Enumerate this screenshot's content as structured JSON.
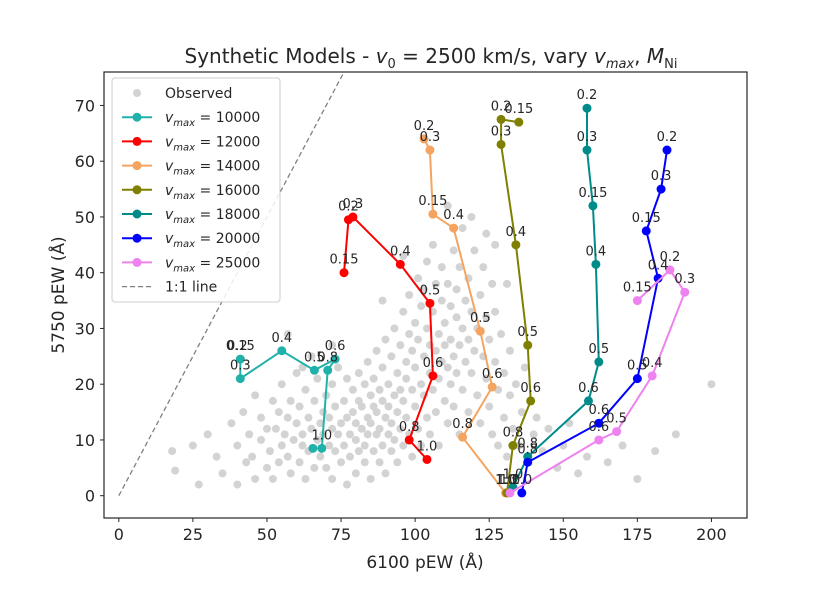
{
  "chart_data": {
    "type": "scatter",
    "title": "Synthetic Models - v₀ = 2500 km/s, vary vₘₐₓ, Mₙᵢ",
    "title_parts": {
      "prefix": "Synthetic Models - ",
      "v": "v",
      "v0_sub": "0",
      "eq": " = 2500 km/s, vary ",
      "vmax_sub": "max",
      "sep": ", ",
      "M": "M",
      "Ni": "Ni"
    },
    "xlabel": "6100 pEW (Å)",
    "ylabel": "5750 pEW (Å)",
    "xlim": [
      -5,
      212
    ],
    "ylim": [
      -4,
      76
    ],
    "xticks": [
      0,
      25,
      50,
      75,
      100,
      125,
      150,
      175,
      200
    ],
    "yticks": [
      0,
      10,
      20,
      30,
      40,
      50,
      60,
      70
    ],
    "legend_position": "top-left",
    "observed": {
      "name": "Observed",
      "color": "#d3d3d3",
      "points": [
        [
          18,
          8
        ],
        [
          19,
          4.5
        ],
        [
          25,
          9
        ],
        [
          27,
          2
        ],
        [
          30,
          11
        ],
        [
          33,
          7
        ],
        [
          35,
          4
        ],
        [
          38,
          13
        ],
        [
          40,
          2
        ],
        [
          40,
          9
        ],
        [
          42,
          15
        ],
        [
          43,
          6
        ],
        [
          44,
          11
        ],
        [
          45,
          7
        ],
        [
          46,
          18
        ],
        [
          46,
          3
        ],
        [
          48,
          10
        ],
        [
          48,
          14
        ],
        [
          50,
          5
        ],
        [
          50,
          12
        ],
        [
          51,
          8
        ],
        [
          52,
          17
        ],
        [
          52,
          3
        ],
        [
          53,
          12
        ],
        [
          54,
          15
        ],
        [
          54,
          6
        ],
        [
          55,
          9
        ],
        [
          55,
          20
        ],
        [
          56,
          11
        ],
        [
          57,
          14
        ],
        [
          57,
          7
        ],
        [
          58,
          4
        ],
        [
          58,
          17
        ],
        [
          59,
          10
        ],
        [
          60,
          22
        ],
        [
          60,
          13
        ],
        [
          61,
          6
        ],
        [
          61,
          16
        ],
        [
          62,
          9
        ],
        [
          62,
          11
        ],
        [
          63,
          19
        ],
        [
          63,
          3
        ],
        [
          64,
          14
        ],
        [
          64,
          8
        ],
        [
          65,
          25
        ],
        [
          65,
          12
        ],
        [
          66,
          5
        ],
        [
          66,
          17
        ],
        [
          67,
          10
        ],
        [
          67,
          21
        ],
        [
          68,
          13
        ],
        [
          68,
          7
        ],
        [
          69,
          15
        ],
        [
          69,
          11
        ],
        [
          70,
          18
        ],
        [
          70,
          5
        ],
        [
          71,
          9
        ],
        [
          71,
          14
        ],
        [
          72,
          12
        ],
        [
          72,
          20
        ],
        [
          72,
          3
        ],
        [
          73,
          16
        ],
        [
          73,
          8
        ],
        [
          74,
          11
        ],
        [
          74,
          23
        ],
        [
          75,
          13
        ],
        [
          75,
          6
        ],
        [
          76,
          17
        ],
        [
          76,
          9
        ],
        [
          77,
          14
        ],
        [
          77,
          2
        ],
        [
          77,
          21
        ],
        [
          78,
          11
        ],
        [
          78,
          7
        ],
        [
          79,
          15
        ],
        [
          79,
          19
        ],
        [
          80,
          10
        ],
        [
          80,
          13
        ],
        [
          80,
          4
        ],
        [
          81,
          17
        ],
        [
          81,
          22
        ],
        [
          81,
          8
        ],
        [
          82,
          12
        ],
        [
          82,
          16
        ],
        [
          83,
          20
        ],
        [
          83,
          9
        ],
        [
          83,
          6
        ],
        [
          84,
          14
        ],
        [
          84,
          24
        ],
        [
          84,
          11
        ],
        [
          85,
          18
        ],
        [
          85,
          3
        ],
        [
          85,
          13
        ],
        [
          86,
          21
        ],
        [
          86,
          8
        ],
        [
          86,
          16
        ],
        [
          87,
          11
        ],
        [
          87,
          26
        ],
        [
          87,
          15
        ],
        [
          88,
          19
        ],
        [
          88,
          6
        ],
        [
          88,
          12
        ],
        [
          89,
          23
        ],
        [
          89,
          9
        ],
        [
          89,
          17
        ],
        [
          90,
          14
        ],
        [
          90,
          28
        ],
        [
          90,
          4
        ],
        [
          91,
          20
        ],
        [
          91,
          11
        ],
        [
          91,
          16
        ],
        [
          92,
          25
        ],
        [
          92,
          8
        ],
        [
          92,
          13
        ],
        [
          93,
          18
        ],
        [
          93,
          30
        ],
        [
          93,
          10
        ],
        [
          94,
          22
        ],
        [
          94,
          15
        ],
        [
          94,
          6
        ],
        [
          95,
          27
        ],
        [
          95,
          12
        ],
        [
          95,
          19
        ],
        [
          96,
          33
        ],
        [
          96,
          9
        ],
        [
          96,
          17
        ],
        [
          97,
          24
        ],
        [
          97,
          14
        ],
        [
          97,
          21
        ],
        [
          98,
          29
        ],
        [
          98,
          11
        ],
        [
          98,
          36
        ],
        [
          99,
          19
        ],
        [
          99,
          26
        ],
        [
          99,
          7
        ],
        [
          100,
          23
        ],
        [
          100,
          31
        ],
        [
          100,
          16
        ],
        [
          101,
          39
        ],
        [
          101,
          12
        ],
        [
          101,
          28
        ],
        [
          102,
          20
        ],
        [
          102,
          34
        ],
        [
          102,
          9
        ],
        [
          103,
          25
        ],
        [
          103,
          37
        ],
        [
          103,
          18
        ],
        [
          104,
          14
        ],
        [
          104,
          42
        ],
        [
          104,
          30
        ],
        [
          105,
          22
        ],
        [
          105,
          27
        ],
        [
          105,
          11
        ],
        [
          106,
          33
        ],
        [
          106,
          19
        ],
        [
          106,
          45
        ],
        [
          107,
          26
        ],
        [
          107,
          15
        ],
        [
          107,
          38
        ],
        [
          108,
          29
        ],
        [
          108,
          21
        ],
        [
          108,
          9
        ],
        [
          109,
          35
        ],
        [
          109,
          24
        ],
        [
          109,
          41
        ],
        [
          110,
          17
        ],
        [
          110,
          31
        ],
        [
          110,
          27
        ],
        [
          111,
          23
        ],
        [
          111,
          38
        ],
        [
          111,
          13
        ],
        [
          112,
          34
        ],
        [
          112,
          28
        ],
        [
          112,
          20
        ],
        [
          113,
          44
        ],
        [
          113,
          25
        ],
        [
          113,
          16
        ],
        [
          114,
          32
        ],
        [
          114,
          37
        ],
        [
          114,
          22
        ],
        [
          115,
          27
        ],
        [
          115,
          41
        ],
        [
          115,
          11
        ],
        [
          116,
          30
        ],
        [
          116,
          19
        ],
        [
          116,
          48
        ],
        [
          117,
          35
        ],
        [
          117,
          24
        ],
        [
          118,
          28
        ],
        [
          118,
          39
        ],
        [
          118,
          15
        ],
        [
          119,
          22
        ],
        [
          119,
          33
        ],
        [
          120,
          26
        ],
        [
          120,
          44
        ],
        [
          121,
          30
        ],
        [
          121,
          18
        ],
        [
          122,
          36
        ],
        [
          122,
          13
        ],
        [
          123,
          25
        ],
        [
          123,
          41
        ],
        [
          124,
          21
        ],
        [
          124,
          32
        ],
        [
          125,
          16
        ],
        [
          125,
          28
        ],
        [
          126,
          38
        ],
        [
          126,
          11
        ],
        [
          127,
          24
        ],
        [
          127,
          33
        ],
        [
          128,
          19
        ],
        [
          128,
          9
        ],
        [
          129,
          29
        ],
        [
          130,
          14
        ],
        [
          130,
          22
        ],
        [
          131,
          7
        ],
        [
          132,
          18
        ],
        [
          132,
          26
        ],
        [
          133,
          12
        ],
        [
          134,
          20
        ],
        [
          135,
          9
        ],
        [
          136,
          15
        ],
        [
          137,
          23
        ],
        [
          138,
          6
        ],
        [
          139,
          17
        ],
        [
          140,
          11
        ],
        [
          141,
          14
        ],
        [
          143,
          8
        ],
        [
          145,
          12
        ],
        [
          148,
          5
        ],
        [
          150,
          9
        ],
        [
          152,
          13
        ],
        [
          155,
          4
        ],
        [
          158,
          7
        ],
        [
          162,
          10
        ],
        [
          165,
          6
        ],
        [
          170,
          9
        ],
        [
          175,
          3
        ],
        [
          181,
          8
        ],
        [
          188,
          11
        ],
        [
          200,
          20
        ],
        [
          127,
          45
        ],
        [
          131,
          38
        ],
        [
          124,
          47
        ],
        [
          119,
          50
        ],
        [
          111,
          52
        ],
        [
          96,
          43
        ],
        [
          89,
          35
        ],
        [
          72,
          27
        ],
        [
          62,
          23
        ],
        [
          57,
          29
        ]
      ]
    },
    "series": [
      {
        "name": "v_max = 10000",
        "legend_num": "10000",
        "color": "#20b2aa",
        "points": [
          [
            68.5,
            8.5
          ],
          [
            70.5,
            22.5
          ],
          [
            73,
            24.5
          ],
          [
            66,
            22.5
          ],
          [
            55,
            26
          ],
          [
            41,
            21
          ],
          [
            41,
            24.5
          ]
        ],
        "labels": [
          "1.0",
          "0.8",
          "0.6",
          "0.5",
          "0.4",
          "0.3",
          "0.15"
        ],
        "extra_labels": [
          {
            "text": "0.2",
            "x": 40,
            "y": 24.5
          }
        ],
        "endpoint_extra": [
          [
            65.5,
            8.5
          ]
        ]
      },
      {
        "name": "v_max = 12000",
        "legend_num": "12000",
        "color": "#ff0000",
        "points": [
          [
            104,
            6.5
          ],
          [
            98,
            10
          ],
          [
            106,
            21.5
          ],
          [
            105,
            34.5
          ],
          [
            95,
            41.5
          ],
          [
            79,
            50
          ],
          [
            77.5,
            49.5
          ],
          [
            76,
            40
          ]
        ],
        "labels": [
          "1.0",
          "0.8",
          "0.6",
          "0.5",
          "0.4",
          "0.3",
          "0.2",
          "0.15"
        ]
      },
      {
        "name": "v_max = 14000",
        "legend_num": "14000",
        "color": "#f4a460",
        "points": [
          [
            130.5,
            0.5
          ],
          [
            116,
            10.5
          ],
          [
            126,
            19.5
          ],
          [
            122,
            29.5
          ],
          [
            113,
            48
          ],
          [
            106,
            50.5
          ],
          [
            105,
            62
          ],
          [
            103,
            64
          ]
        ],
        "labels": [
          "1.0",
          "0.8",
          "0.6",
          "0.5",
          "0.4",
          "0.15",
          "0.3",
          "0.2"
        ]
      },
      {
        "name": "v_max = 16000",
        "legend_num": "16000",
        "color": "#808000",
        "points": [
          [
            131,
            0.5
          ],
          [
            133,
            9
          ],
          [
            139,
            17
          ],
          [
            138,
            27
          ],
          [
            134,
            45
          ],
          [
            129,
            63
          ],
          [
            129,
            67.5
          ],
          [
            135,
            67
          ]
        ],
        "labels": [
          "1.0",
          "0.8",
          "0.6",
          "0.5",
          "0.4",
          "0.3",
          "0.2",
          "0.15"
        ]
      },
      {
        "name": "v_max = 18000",
        "legend_num": "18000",
        "color": "#008b8b",
        "points": [
          [
            133,
            1.5
          ],
          [
            138,
            7
          ],
          [
            158.5,
            17
          ],
          [
            162,
            24
          ],
          [
            161,
            41.5
          ],
          [
            160,
            52
          ],
          [
            158,
            62
          ],
          [
            158,
            69.5
          ]
        ],
        "labels": [
          "1.0",
          "0.8",
          "0.6",
          "0.5",
          "0.4",
          "0.15",
          "0.3",
          "0.2"
        ]
      },
      {
        "name": "v_max = 20000",
        "legend_num": "20000",
        "color": "#0000ff",
        "points": [
          [
            136,
            0.5
          ],
          [
            138,
            6
          ],
          [
            162,
            13
          ],
          [
            175,
            21
          ],
          [
            182,
            39
          ],
          [
            178,
            47.5
          ],
          [
            183,
            55
          ],
          [
            185,
            62
          ]
        ],
        "labels": [
          "1.0",
          "0.8",
          "0.6",
          "0.5",
          "0.4",
          "0.15",
          "0.3",
          "0.2"
        ]
      },
      {
        "name": "v_max = 25000",
        "legend_num": "25000",
        "color": "#ee82ee",
        "points": [
          [
            132,
            0.5
          ],
          [
            162,
            10
          ],
          [
            168,
            11.5
          ],
          [
            180,
            21.5
          ],
          [
            191,
            36.5
          ],
          [
            186,
            40.5
          ],
          [
            175,
            35
          ]
        ],
        "labels": [
          "1.0",
          "0.6",
          "0.5",
          "0.4",
          "0.3",
          "0.2",
          "0.15"
        ]
      }
    ],
    "reference_line": {
      "name": "1:1 line",
      "color": "#808080",
      "style": "dashed"
    }
  }
}
